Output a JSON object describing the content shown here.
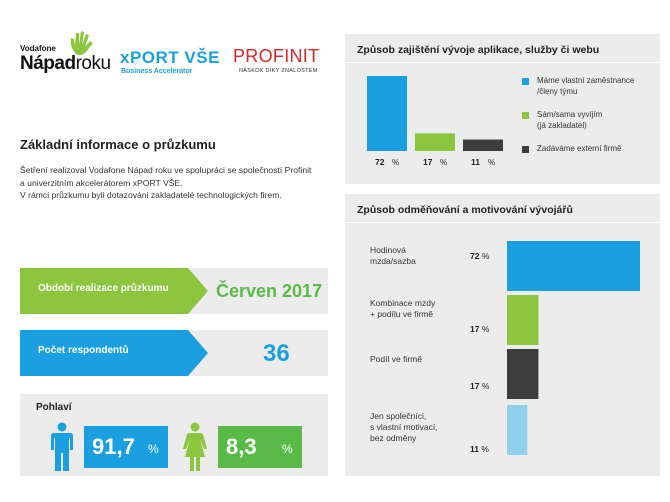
{
  "logos": {
    "vodafone_small": "Vodafone",
    "vodafone_big_bold": "Nápad",
    "vodafone_big_light": "roku",
    "xport_main": "xPORT VŠE",
    "xport_sub": "Business Accelerator",
    "profinit_main": "PROFINIT",
    "profinit_sub": "NÁSKOK DÍKY ZNALOSTEM"
  },
  "info": {
    "title": "Základní informace o průzkumu",
    "lines": [
      "Šetření realizoval Vodafone Nápad roku ve spolupráci se společností Profinit",
      "a univerzitním akcelerátorem xPORT VŠE.",
      "V rámci průzkumu byli dotazováni zakladatelé technologických firem."
    ]
  },
  "stats": {
    "period_label": "Období realizace průzkumu",
    "period_value": "Červen 2017",
    "respondents_label": "Počet respondentů",
    "respondents_value": "36",
    "gender_title": "Pohlaví",
    "male_value": "91,7",
    "female_value": "8,3",
    "unit": "%"
  },
  "colors": {
    "blue": "#1aa0e0",
    "green": "#8cc63f",
    "dark": "#3d3d3d",
    "light_blue": "#8fd0ee",
    "stat_green": "#5aba47"
  },
  "chart_data": [
    {
      "type": "bar",
      "title": "Způsob zajištění vývoje aplikace, služby či webu",
      "categories": [
        "Máme vlastní zaměstnance /členy týmu",
        "Sám/sama vyvíjím (já zakladatel)",
        "Zadáváme externí firmě"
      ],
      "values": [
        72,
        17,
        11
      ],
      "value_labels": [
        "72",
        "17",
        "11"
      ],
      "unit": "%",
      "legend": [
        {
          "lines": [
            "Máme vlastní zaměstnance",
            "/členy týmu"
          ],
          "color": "#1aa0e0"
        },
        {
          "lines": [
            "Sám/sama vyvíjím",
            "(já zakladatel)"
          ],
          "color": "#8cc63f"
        },
        {
          "lines": [
            "Zadáváme externí firmě"
          ],
          "color": "#3d3d3d"
        }
      ],
      "legend_position": "right",
      "colors": [
        "#1aa0e0",
        "#8cc63f",
        "#3d3d3d"
      ],
      "ylim": [
        0,
        72
      ],
      "grid": false
    },
    {
      "type": "bar",
      "orientation": "horizontal",
      "title": "Způsob odměňování a motivování vývojářů",
      "categories": [
        [
          "Hodinová",
          "mzda/sazba"
        ],
        [
          "Kombinace mzdy",
          "+ podílu ve firmě"
        ],
        [
          "Podíl ve firmě"
        ],
        [
          "Jen společníci,",
          "s vlastní motivací,",
          "bez odměny"
        ]
      ],
      "values": [
        72,
        17,
        17,
        11
      ],
      "value_labels": [
        "72",
        "17",
        "17",
        "11"
      ],
      "unit": "%",
      "colors": [
        "#1aa0e0",
        "#8cc63f",
        "#3d3d3d",
        "#8fd0ee"
      ],
      "xlim": [
        0,
        72
      ],
      "grid": false
    }
  ]
}
